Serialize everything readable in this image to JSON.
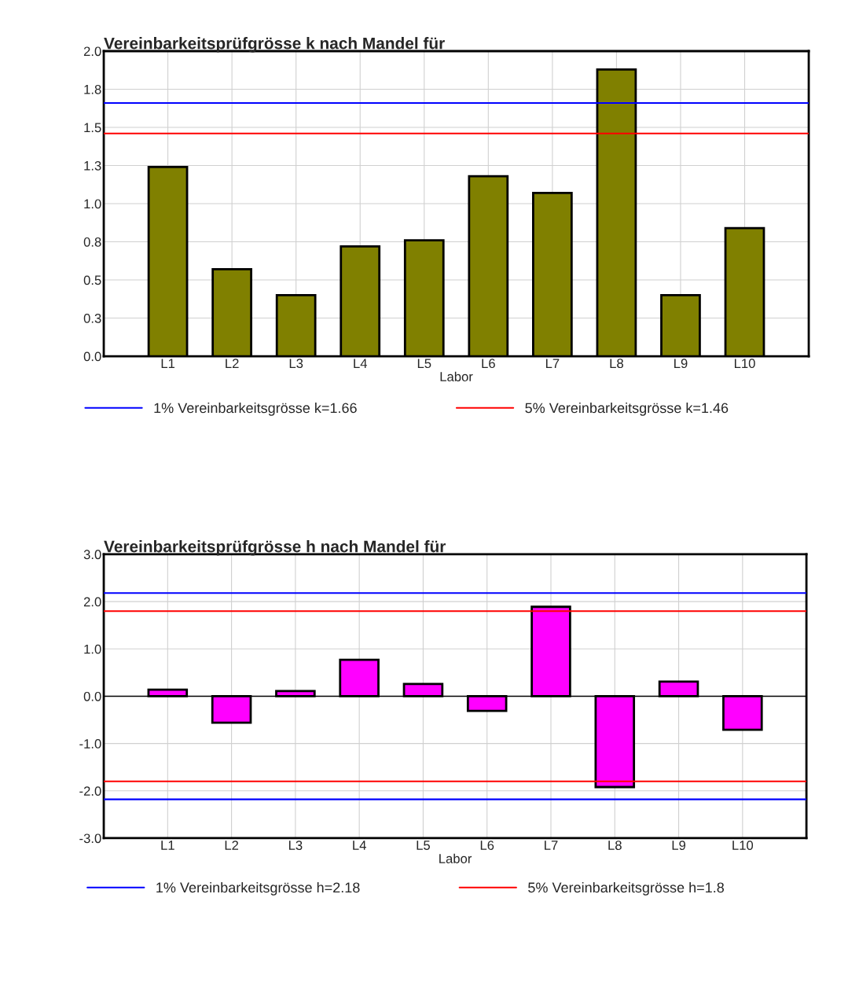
{
  "chart_data": [
    {
      "type": "bar",
      "title": "Vereinbarkeitsprüfgrösse k nach Mandel für",
      "xlabel": "Labor",
      "categories": [
        "L1",
        "L2",
        "L3",
        "L4",
        "L5",
        "L6",
        "L7",
        "L8",
        "L9",
        "L10"
      ],
      "series": [
        {
          "color": "#808000",
          "values": [
            1.24,
            0.57,
            0.4,
            0.72,
            0.76,
            1.18,
            1.07,
            1.88,
            0.4,
            0.84
          ]
        }
      ],
      "ylim": [
        0,
        2.0
      ],
      "yticks": [
        {
          "value": 0,
          "label": "0.0"
        },
        {
          "value": 0.25,
          "label": "0.3"
        },
        {
          "value": 0.5,
          "label": "0.5"
        },
        {
          "value": 0.75,
          "label": "0.8"
        },
        {
          "value": 1.0,
          "label": "1.0"
        },
        {
          "value": 1.25,
          "label": "1.3"
        },
        {
          "value": 1.5,
          "label": "1.5"
        },
        {
          "value": 1.75,
          "label": "1.8"
        },
        {
          "value": 2.0,
          "label": "2.0"
        }
      ],
      "ref_lines": [
        {
          "axis": "y",
          "value": 1.66,
          "label": "1% Vereinbarkeitsgrösse k=1.66",
          "color": "#0000ff"
        },
        {
          "axis": "y",
          "value": 1.46,
          "label": "5% Vereinbarkeitsgrösse k=1.46",
          "color": "#ff0000"
        }
      ],
      "grid": true,
      "legend": "bottom"
    },
    {
      "type": "bar",
      "title": "Vereinbarkeitsprüfgrösse h nach Mandel für",
      "xlabel": "Labor",
      "categories": [
        "L1",
        "L2",
        "L3",
        "L4",
        "L5",
        "L6",
        "L7",
        "L8",
        "L9",
        "L10"
      ],
      "series": [
        {
          "color": "#ff00ff",
          "values": [
            0.14,
            -0.56,
            0.11,
            0.77,
            0.26,
            -0.31,
            1.89,
            -1.92,
            0.31,
            -0.71
          ]
        }
      ],
      "ylim": [
        -3.0,
        3.0
      ],
      "yticks": [
        {
          "value": -3,
          "label": "-3.0"
        },
        {
          "value": -2,
          "label": "-2.0"
        },
        {
          "value": -1,
          "label": "-1.0"
        },
        {
          "value": 0,
          "label": "0.0"
        },
        {
          "value": 1,
          "label": "1.0"
        },
        {
          "value": 2,
          "label": "2.0"
        },
        {
          "value": 3,
          "label": "3.0"
        }
      ],
      "ref_lines": [
        {
          "axis": "y",
          "value": 2.18,
          "label": "1% Vereinbarkeitsgrösse h=2.18",
          "color": "#0000ff"
        },
        {
          "axis": "y",
          "value": 1.8,
          "label": "5% Vereinbarkeitsgrösse h=1.8",
          "color": "#ff0000"
        },
        {
          "axis": "y",
          "value": -1.8,
          "color": "#ff0000"
        },
        {
          "axis": "y",
          "value": -2.18,
          "color": "#0000ff"
        }
      ],
      "grid": true,
      "legend": "bottom"
    }
  ]
}
